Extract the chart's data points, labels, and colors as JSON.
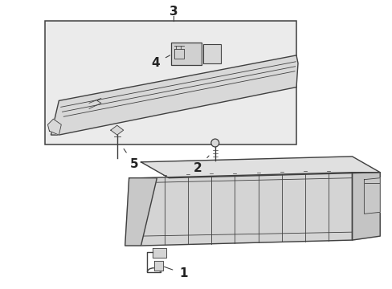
{
  "bg_color": "#ffffff",
  "line_color": "#404040",
  "label_color": "#222222",
  "box_bg": "#ebebeb",
  "panel_fill": "#d8d8d8",
  "lower_fill": "#d4d4d4",
  "lower_top_fill": "#e0e0e0",
  "lower_side_fill": "#c4c4c4"
}
